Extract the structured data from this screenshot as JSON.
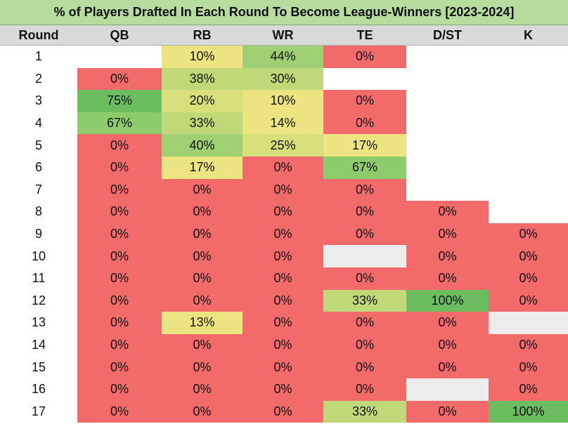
{
  "title": "% of Players Drafted In Each Round To Become League-Winners [2023-2024]",
  "colors": {
    "red": "#f26a6a",
    "yellow": "#ece480",
    "light_yellow_green": "#d7e07a",
    "light_green": "#c1d878",
    "green": "#9fd174",
    "mid_green": "#8dcb6c",
    "deep_green": "#6bbd60",
    "gray": "#ececec",
    "title_bg": "#b6dca0",
    "header_bg": "#d9d9d9"
  },
  "chart_data": {
    "type": "table",
    "title": "% of Players Drafted In Each Round To Become League-Winners [2023-2024]",
    "row_header": "Round",
    "columns": [
      "QB",
      "RB",
      "WR",
      "TE",
      "D/ST",
      "K"
    ],
    "rows": [
      {
        "round": "1",
        "cells": [
          null,
          "10%",
          "44%",
          "0%",
          null,
          null
        ]
      },
      {
        "round": "2",
        "cells": [
          "0%",
          "38%",
          "30%",
          null,
          null,
          null
        ]
      },
      {
        "round": "3",
        "cells": [
          "75%",
          "20%",
          "10%",
          "0%",
          null,
          null
        ]
      },
      {
        "round": "4",
        "cells": [
          "67%",
          "33%",
          "14%",
          "0%",
          null,
          null
        ]
      },
      {
        "round": "5",
        "cells": [
          "0%",
          "40%",
          "25%",
          "17%",
          null,
          null
        ]
      },
      {
        "round": "6",
        "cells": [
          "0%",
          "17%",
          "0%",
          "67%",
          null,
          null
        ]
      },
      {
        "round": "7",
        "cells": [
          "0%",
          "0%",
          "0%",
          "0%",
          null,
          null
        ]
      },
      {
        "round": "8",
        "cells": [
          "0%",
          "0%",
          "0%",
          "0%",
          "0%",
          null
        ]
      },
      {
        "round": "9",
        "cells": [
          "0%",
          "0%",
          "0%",
          "0%",
          "0%",
          "0%"
        ]
      },
      {
        "round": "10",
        "cells": [
          "0%",
          "0%",
          "0%",
          "",
          "0%",
          "0%"
        ]
      },
      {
        "round": "11",
        "cells": [
          "0%",
          "0%",
          "0%",
          "0%",
          "0%",
          "0%"
        ]
      },
      {
        "round": "12",
        "cells": [
          "0%",
          "0%",
          "0%",
          "33%",
          "100%",
          "0%"
        ]
      },
      {
        "round": "13",
        "cells": [
          "0%",
          "13%",
          "0%",
          "0%",
          "0%",
          ""
        ]
      },
      {
        "round": "14",
        "cells": [
          "0%",
          "0%",
          "0%",
          "0%",
          "0%",
          "0%"
        ]
      },
      {
        "round": "15",
        "cells": [
          "0%",
          "0%",
          "0%",
          "0%",
          "0%",
          "0%"
        ]
      },
      {
        "round": "16",
        "cells": [
          "0%",
          "0%",
          "0%",
          "0%",
          "",
          "0%"
        ]
      },
      {
        "round": "17",
        "cells": [
          "0%",
          "0%",
          "0%",
          "33%",
          "0%",
          "100%"
        ]
      }
    ]
  }
}
